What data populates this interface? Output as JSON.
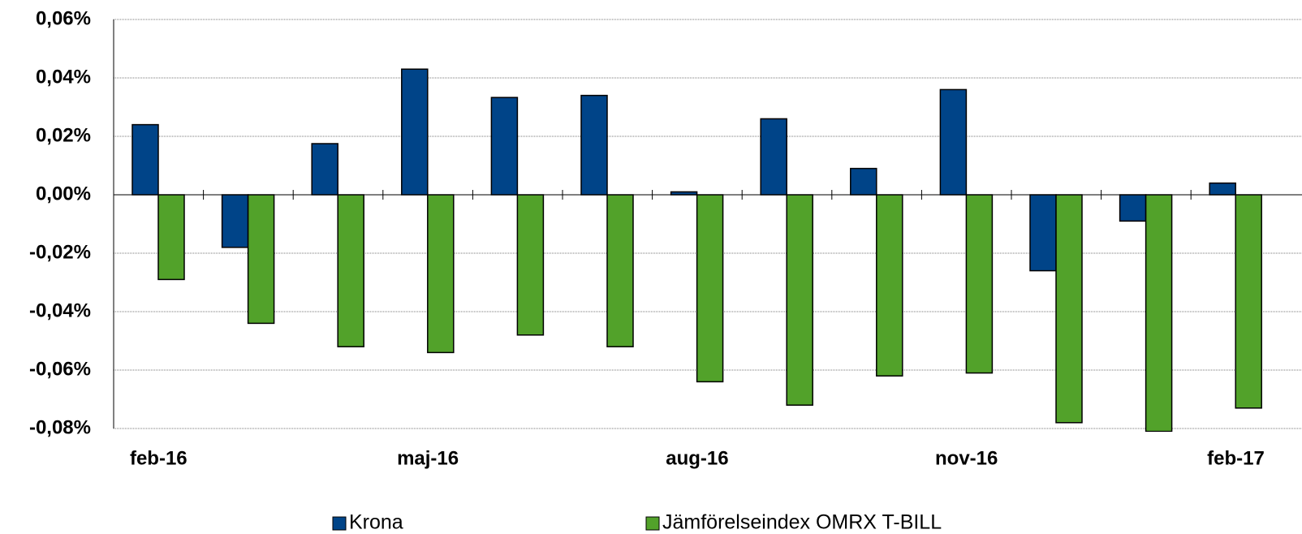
{
  "chart_data": {
    "type": "bar",
    "categories": [
      "feb-16",
      null,
      null,
      "maj-16",
      null,
      null,
      "aug-16",
      null,
      null,
      "nov-16",
      null,
      null,
      "feb-17"
    ],
    "series": [
      {
        "name": "Krona",
        "color": "#004488",
        "values": [
          0.024,
          -0.018,
          0.0175,
          0.043,
          0.0333,
          0.034,
          0.001,
          0.026,
          0.009,
          0.036,
          -0.026,
          -0.009,
          0.004
        ]
      },
      {
        "name": "Jämförelseindex OMRX T-BILL",
        "color": "#52a22a",
        "values": [
          -0.029,
          -0.044,
          -0.052,
          -0.054,
          -0.048,
          -0.052,
          -0.064,
          -0.072,
          -0.062,
          -0.061,
          -0.078,
          -0.081,
          -0.073
        ]
      }
    ],
    "ylim": [
      -0.08,
      0.06
    ],
    "yticks": [
      {
        "value": -0.08,
        "label": "-0,08%"
      },
      {
        "value": -0.06,
        "label": "-0,06%"
      },
      {
        "value": -0.04,
        "label": "-0,04%"
      },
      {
        "value": -0.02,
        "label": "-0,02%"
      },
      {
        "value": 0,
        "label": "0,00%"
      },
      {
        "value": 0.02,
        "label": "0,02%"
      },
      {
        "value": 0.04,
        "label": "0,04%"
      },
      {
        "value": 0.06,
        "label": "0,06%"
      }
    ],
    "grid": true,
    "legend": "bottom"
  }
}
